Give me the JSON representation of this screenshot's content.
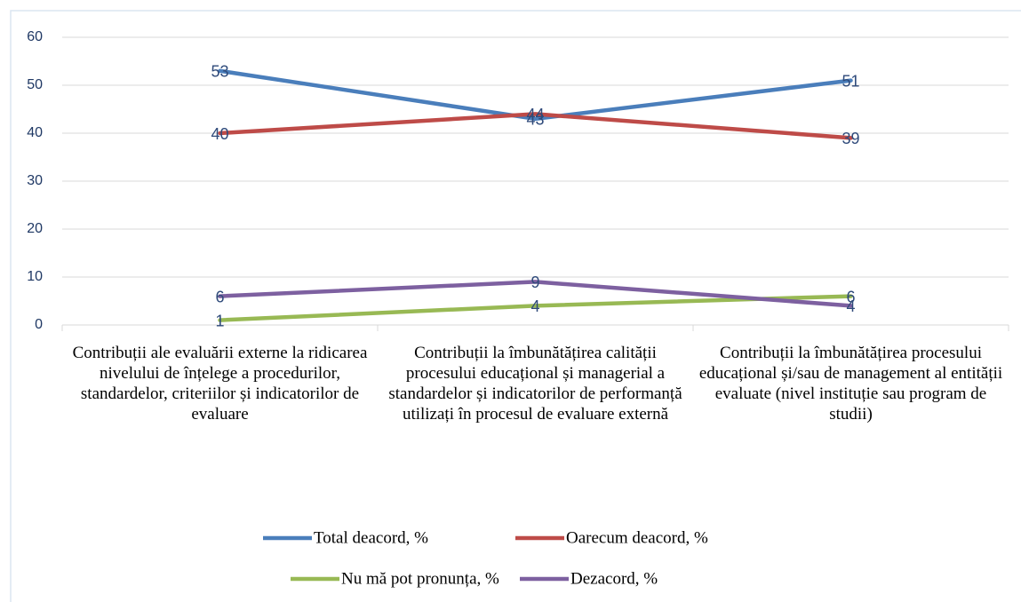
{
  "chart_data": {
    "type": "line",
    "categories": [
      "Contribuții ale evaluării externe la ridicarea nivelului de înțelege a procedurilor, standardelor, criteriilor și indicatorilor de evaluare",
      "Contribuții la îmbunătățirea calității procesului educațional și managerial a standardelor și indicatorilor de performanță utilizați în procesul de evaluare externă",
      "Contribuții la îmbunătățirea procesului educațional și/sau de management al entității evaluate (nivel instituție sau program de studii)"
    ],
    "series": [
      {
        "name": "Total deacord, %",
        "color": "#4a7ebb",
        "values": [
          53,
          43,
          51
        ]
      },
      {
        "name": "Oarecum deacord, %",
        "color": "#be4b48",
        "values": [
          40,
          44,
          39
        ]
      },
      {
        "name": "Nu mă pot pronunța, %",
        "color": "#98b954",
        "values": [
          1,
          4,
          6
        ]
      },
      {
        "name": "Dezacord, %",
        "color": "#7d60a0",
        "values": [
          6,
          9,
          4
        ]
      }
    ],
    "ylim": [
      0,
      60
    ],
    "yticks": [
      0,
      10,
      20,
      30,
      40,
      50,
      60
    ],
    "grid": true,
    "legend": "bottom"
  }
}
